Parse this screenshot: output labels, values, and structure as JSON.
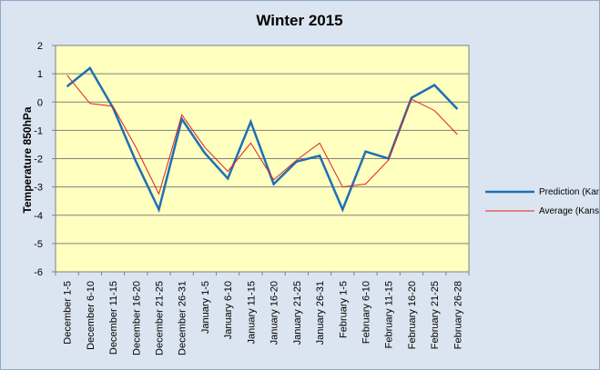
{
  "chart_data": {
    "type": "line",
    "title": "Winter 2015",
    "xlabel": "",
    "ylabel": "Temperature 850hPa",
    "ylim": [
      -6,
      2
    ],
    "yticks": [
      2,
      1,
      0,
      -1,
      -2,
      -3,
      -4,
      -5,
      -6
    ],
    "grid": true,
    "legend_position": "right",
    "plot_background": "#ffffc0",
    "categories": [
      "December 1-5",
      "December 6-10",
      "December 11-15",
      "December 16-20",
      "December 21-25",
      "December 26-31",
      "January 1-5",
      "January 6-10",
      "January 11-15",
      "January 16-20",
      "January 21-25",
      "January 26-31",
      "February 1-5",
      "February 6-10",
      "February 11-15",
      "February 16-20",
      "February 21-25",
      "February 26-28"
    ],
    "series": [
      {
        "name": "Prediction (Kansas)",
        "color": "#1f6fb5",
        "values": [
          0.55,
          1.2,
          -0.2,
          -2.1,
          -3.8,
          -0.6,
          -1.8,
          -2.7,
          -0.7,
          -2.9,
          -2.1,
          -1.9,
          -3.8,
          -1.75,
          -2.0,
          0.15,
          0.6,
          -0.25
        ]
      },
      {
        "name": "Average (Kansas)",
        "color": "#e02020",
        "values": [
          0.95,
          -0.05,
          -0.15,
          -1.6,
          -3.25,
          -0.45,
          -1.6,
          -2.45,
          -1.45,
          -2.75,
          -2.05,
          -1.45,
          -3.0,
          -2.9,
          -2.05,
          0.1,
          -0.3,
          -1.15
        ]
      }
    ]
  }
}
